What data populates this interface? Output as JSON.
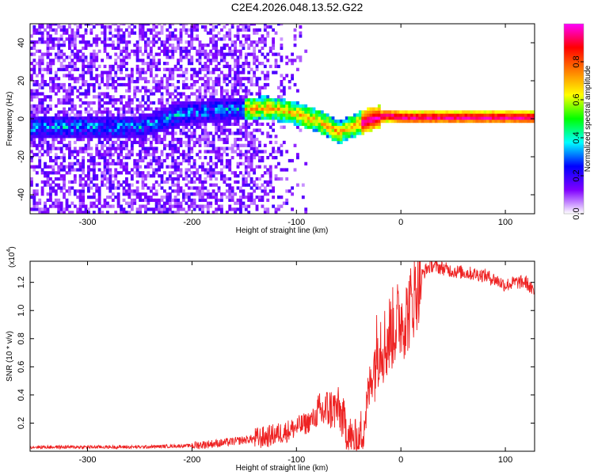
{
  "page_title": "C2E4.2026.048.13.52.G22",
  "chart_data": [
    {
      "type": "heatmap",
      "title": "",
      "xlabel": "Height of straight line (km)",
      "ylabel": "Frequency (Hz)",
      "xlim": [
        -355,
        128
      ],
      "ylim": [
        -50,
        50
      ],
      "xticks": [
        -300,
        -200,
        -100,
        0,
        100
      ],
      "yticks": [
        -40,
        -20,
        0,
        20,
        40
      ],
      "ridge_center_hz": [
        {
          "x": -250,
          "y": -5
        },
        {
          "x": -210,
          "y": 2
        },
        {
          "x": -170,
          "y": 4
        },
        {
          "x": -130,
          "y": 5
        },
        {
          "x": -100,
          "y": 2
        },
        {
          "x": -80,
          "y": -2
        },
        {
          "x": -60,
          "y": -8
        },
        {
          "x": -45,
          "y": -4
        },
        {
          "x": -30,
          "y": -1
        },
        {
          "x": -15,
          "y": 1
        },
        {
          "x": 0,
          "y": 0
        },
        {
          "x": 128,
          "y": 0
        }
      ],
      "colorbar": {
        "label": "Normalized spectral amplitude",
        "range": [
          0,
          1
        ],
        "ticks": [
          "0.0",
          "0.2",
          "0.4",
          "0.6",
          "0.8"
        ],
        "colors": [
          "#ffffff",
          "#8000ff",
          "#0000ff",
          "#00ffff",
          "#00ff00",
          "#ffff00",
          "#ff8000",
          "#ff0000",
          "#ff00ff"
        ]
      }
    },
    {
      "type": "line",
      "title": "",
      "xlabel": "Height of straight line (km)",
      "ylabel": "SNR (10 * v/v)",
      "multiplier": "(x10",
      "multiplier_exp": "4",
      "xlim": [
        -355,
        128
      ],
      "ylim": [
        0,
        1.35
      ],
      "xticks": [
        -300,
        -200,
        -100,
        0,
        100
      ],
      "yticks": [
        "0.2",
        "0.4",
        "0.6",
        "0.8",
        "1.0",
        "1.2"
      ],
      "series_color": "#ee2222",
      "series": [
        {
          "name": "SNR",
          "x": [
            -355,
            -300,
            -250,
            -200,
            -170,
            -150,
            -130,
            -110,
            -100,
            -90,
            -80,
            -70,
            -60,
            -55,
            -50,
            -45,
            -40,
            -35,
            -30,
            -25,
            -20,
            -15,
            -10,
            -5,
            0,
            5,
            10,
            15,
            20,
            25,
            30,
            40,
            50,
            60,
            70,
            80,
            90,
            100,
            110,
            120,
            128
          ],
          "y": [
            0.03,
            0.03,
            0.03,
            0.04,
            0.06,
            0.08,
            0.1,
            0.14,
            0.17,
            0.2,
            0.25,
            0.3,
            0.3,
            0.22,
            0.12,
            0.06,
            0.1,
            0.2,
            0.45,
            0.65,
            0.8,
            0.75,
            0.85,
            0.9,
            0.95,
            0.95,
            1.05,
            1.15,
            1.25,
            1.3,
            1.32,
            1.3,
            1.28,
            1.27,
            1.26,
            1.25,
            1.22,
            1.18,
            1.2,
            1.2,
            1.12
          ]
        }
      ]
    }
  ]
}
